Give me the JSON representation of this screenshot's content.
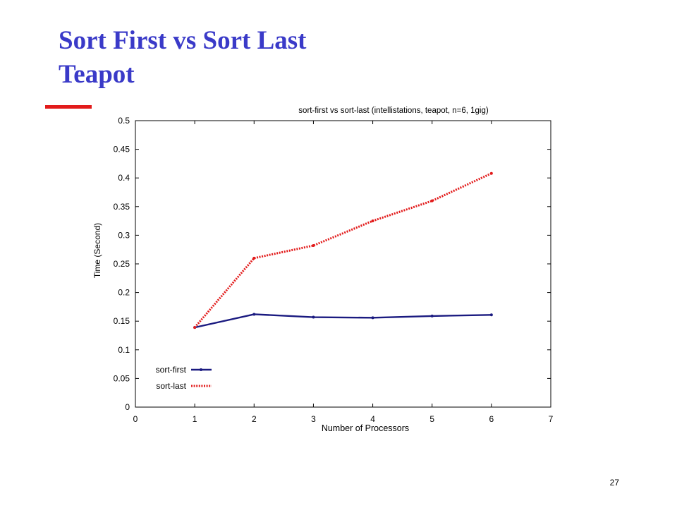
{
  "slide": {
    "title_line1": "Sort First vs Sort Last",
    "title_line2": "Teapot",
    "page_number": "27",
    "title_color": "#3a3ac8",
    "accent_color": "#e21b1b"
  },
  "chart_data": {
    "type": "line",
    "title": "sort-first vs sort-last (intellistations, teapot, n=6, 1gig)",
    "xlabel": "Number of Processors",
    "ylabel": "Time (Second)",
    "xlim": [
      0,
      7
    ],
    "ylim": [
      0,
      0.5
    ],
    "x_ticks": [
      "0",
      "1",
      "2",
      "3",
      "4",
      "5",
      "6",
      "7"
    ],
    "y_ticks": [
      "0",
      "0.05",
      "0.1",
      "0.15",
      "0.2",
      "0.25",
      "0.3",
      "0.35",
      "0.4",
      "0.45",
      "0.5"
    ],
    "grid": false,
    "legend_position": "bottom-left",
    "series": [
      {
        "name": "sort-first",
        "color": "#1a1a80",
        "style": "solid",
        "x": [
          1,
          2,
          3,
          4,
          5,
          6
        ],
        "y": [
          0.139,
          0.162,
          0.157,
          0.156,
          0.159,
          0.161
        ]
      },
      {
        "name": "sort-last",
        "color": "#e21b1b",
        "style": "dotted",
        "x": [
          1,
          2,
          3,
          4,
          5,
          6
        ],
        "y": [
          0.139,
          0.26,
          0.282,
          0.325,
          0.36,
          0.408
        ]
      }
    ]
  }
}
